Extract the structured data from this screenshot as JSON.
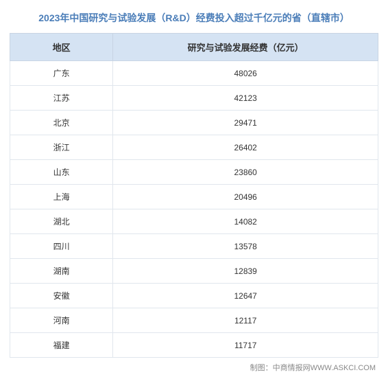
{
  "title": "2023年中国研究与试验发展（R&D）经费投入超过千亿元的省（直辖市）",
  "columns": {
    "region": "地区",
    "value": "研究与试验发展经费（亿元）"
  },
  "rows": [
    {
      "region": "广东",
      "value": "48026"
    },
    {
      "region": "江苏",
      "value": "42123"
    },
    {
      "region": "北京",
      "value": "29471"
    },
    {
      "region": "浙江",
      "value": "26402"
    },
    {
      "region": "山东",
      "value": "23860"
    },
    {
      "region": "上海",
      "value": "20496"
    },
    {
      "region": "湖北",
      "value": "14082"
    },
    {
      "region": "四川",
      "value": "13578"
    },
    {
      "region": "湖南",
      "value": "12839"
    },
    {
      "region": "安徽",
      "value": "12647"
    },
    {
      "region": "河南",
      "value": "12117"
    },
    {
      "region": "福建",
      "value": "11717"
    }
  ],
  "footer": "制图：中商情报网WWW.ASKCI.COM",
  "style": {
    "title_color": "#4a7db8",
    "title_fontsize": 14,
    "header_bg": "#d5e3f3",
    "header_border": "#c8d4e3",
    "cell_border": "#e0e6ed",
    "text_color": "#333333",
    "footer_color": "#888888",
    "body_fontsize": 12,
    "col_widths": [
      "28%",
      "72%"
    ]
  }
}
